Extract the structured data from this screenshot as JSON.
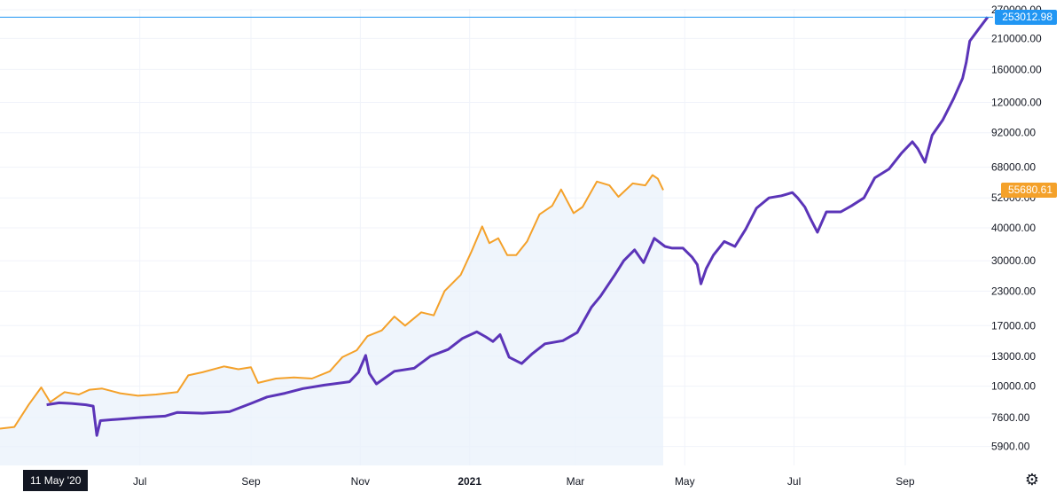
{
  "colors": {
    "series_primary": "#5b34b8",
    "series_secondary": "#f4a12a",
    "area_fill": "#eaf1fb",
    "crosshair": "#2196f3",
    "grid": "#f0f3fa",
    "text": "#131722"
  },
  "chart_data": {
    "type": "line",
    "y_scale": "log",
    "ylim": [
      5000,
      272000
    ],
    "x_range": [
      "2020-04-14",
      "2021-10-20"
    ],
    "x_ticks": [
      {
        "date": "2020-07-01",
        "label": "Jul"
      },
      {
        "date": "2020-09-01",
        "label": "Sep"
      },
      {
        "date": "2020-11-01",
        "label": "Nov"
      },
      {
        "date": "2021-01-01",
        "label": "2021"
      },
      {
        "date": "2021-03-01",
        "label": "Mar"
      },
      {
        "date": "2021-05-01",
        "label": "May"
      },
      {
        "date": "2021-07-01",
        "label": "Jul"
      },
      {
        "date": "2021-09-01",
        "label": "Sep"
      }
    ],
    "y_ticks": [
      {
        "value": 270000,
        "label": "270000.00"
      },
      {
        "value": 210000,
        "label": "210000.00"
      },
      {
        "value": 160000,
        "label": "160000.00"
      },
      {
        "value": 120000,
        "label": "120000.00"
      },
      {
        "value": 92000,
        "label": "92000.00"
      },
      {
        "value": 68000,
        "label": "68000.00"
      },
      {
        "value": 52000,
        "label": "52000.00"
      },
      {
        "value": 40000,
        "label": "40000.00"
      },
      {
        "value": 30000,
        "label": "30000.00"
      },
      {
        "value": 23000,
        "label": "23000.00"
      },
      {
        "value": 17000,
        "label": "17000.00"
      },
      {
        "value": 13000,
        "label": "13000.00"
      },
      {
        "value": 10000,
        "label": "10000.00"
      },
      {
        "value": 7600,
        "label": "7600.00"
      },
      {
        "value": 5900,
        "label": "5900.00"
      }
    ],
    "series": [
      {
        "color": "#f4a12a",
        "area": true,
        "last_value_label": "55680.61",
        "points": [
          [
            "2020-04-14",
            6900
          ],
          [
            "2020-04-22",
            7000
          ],
          [
            "2020-04-30",
            8500
          ],
          [
            "2020-05-07",
            9900
          ],
          [
            "2020-05-12",
            8700
          ],
          [
            "2020-05-20",
            9500
          ],
          [
            "2020-05-28",
            9300
          ],
          [
            "2020-06-03",
            9700
          ],
          [
            "2020-06-10",
            9800
          ],
          [
            "2020-06-20",
            9400
          ],
          [
            "2020-06-30",
            9200
          ],
          [
            "2020-07-10",
            9300
          ],
          [
            "2020-07-22",
            9500
          ],
          [
            "2020-07-28",
            11000
          ],
          [
            "2020-08-05",
            11300
          ],
          [
            "2020-08-17",
            11900
          ],
          [
            "2020-08-25",
            11600
          ],
          [
            "2020-09-01",
            11800
          ],
          [
            "2020-09-05",
            10300
          ],
          [
            "2020-09-15",
            10700
          ],
          [
            "2020-09-25",
            10800
          ],
          [
            "2020-10-05",
            10700
          ],
          [
            "2020-10-15",
            11400
          ],
          [
            "2020-10-22",
            12900
          ],
          [
            "2020-10-30",
            13700
          ],
          [
            "2020-11-05",
            15500
          ],
          [
            "2020-11-13",
            16300
          ],
          [
            "2020-11-20",
            18400
          ],
          [
            "2020-11-26",
            17000
          ],
          [
            "2020-12-05",
            19100
          ],
          [
            "2020-12-12",
            18600
          ],
          [
            "2020-12-18",
            23000
          ],
          [
            "2020-12-27",
            26500
          ],
          [
            "2021-01-02",
            32500
          ],
          [
            "2021-01-08",
            40500
          ],
          [
            "2021-01-12",
            35000
          ],
          [
            "2021-01-17",
            36500
          ],
          [
            "2021-01-22",
            31500
          ],
          [
            "2021-01-27",
            31500
          ],
          [
            "2021-02-02",
            35500
          ],
          [
            "2021-02-09",
            45000
          ],
          [
            "2021-02-16",
            48500
          ],
          [
            "2021-02-21",
            56000
          ],
          [
            "2021-02-28",
            45500
          ],
          [
            "2021-03-05",
            48000
          ],
          [
            "2021-03-13",
            60000
          ],
          [
            "2021-03-20",
            58000
          ],
          [
            "2021-03-25",
            52500
          ],
          [
            "2021-04-02",
            59000
          ],
          [
            "2021-04-09",
            58000
          ],
          [
            "2021-04-13",
            63500
          ],
          [
            "2021-04-16",
            61500
          ],
          [
            "2021-04-19",
            55680.61
          ]
        ]
      },
      {
        "color": "#5b34b8",
        "area": false,
        "last_value_label": "253012.98",
        "points": [
          [
            "2020-05-10",
            8500
          ],
          [
            "2020-05-17",
            8650
          ],
          [
            "2020-05-24",
            8600
          ],
          [
            "2020-06-01",
            8500
          ],
          [
            "2020-06-05",
            8400
          ],
          [
            "2020-06-07",
            6500
          ],
          [
            "2020-06-09",
            7400
          ],
          [
            "2020-06-20",
            7500
          ],
          [
            "2020-07-01",
            7600
          ],
          [
            "2020-07-15",
            7700
          ],
          [
            "2020-07-22",
            7950
          ],
          [
            "2020-08-05",
            7900
          ],
          [
            "2020-08-20",
            8000
          ],
          [
            "2020-09-01",
            8600
          ],
          [
            "2020-09-10",
            9100
          ],
          [
            "2020-09-20",
            9400
          ],
          [
            "2020-09-30",
            9800
          ],
          [
            "2020-10-12",
            10100
          ],
          [
            "2020-10-26",
            10400
          ],
          [
            "2020-10-31",
            11300
          ],
          [
            "2020-11-04",
            13100
          ],
          [
            "2020-11-06",
            11200
          ],
          [
            "2020-11-10",
            10200
          ],
          [
            "2020-11-20",
            11400
          ],
          [
            "2020-12-01",
            11700
          ],
          [
            "2020-12-10",
            13000
          ],
          [
            "2020-12-20",
            13800
          ],
          [
            "2020-12-28",
            15200
          ],
          [
            "2021-01-05",
            16100
          ],
          [
            "2021-01-10",
            15400
          ],
          [
            "2021-01-14",
            14800
          ],
          [
            "2021-01-18",
            15700
          ],
          [
            "2021-01-23",
            12900
          ],
          [
            "2021-01-30",
            12200
          ],
          [
            "2021-02-05",
            13300
          ],
          [
            "2021-02-12",
            14500
          ],
          [
            "2021-02-22",
            14900
          ],
          [
            "2021-03-02",
            16000
          ],
          [
            "2021-03-10",
            20000
          ],
          [
            "2021-03-15",
            22000
          ],
          [
            "2021-03-23",
            26500
          ],
          [
            "2021-03-28",
            30000
          ],
          [
            "2021-04-03",
            33000
          ],
          [
            "2021-04-08",
            29500
          ],
          [
            "2021-04-14",
            36500
          ],
          [
            "2021-04-20",
            34000
          ],
          [
            "2021-04-24",
            33500
          ],
          [
            "2021-04-30",
            33500
          ],
          [
            "2021-05-05",
            31000
          ],
          [
            "2021-05-08",
            29000
          ],
          [
            "2021-05-10",
            24500
          ],
          [
            "2021-05-13",
            28000
          ],
          [
            "2021-05-17",
            31500
          ],
          [
            "2021-05-23",
            35500
          ],
          [
            "2021-05-29",
            34000
          ],
          [
            "2021-06-04",
            39500
          ],
          [
            "2021-06-10",
            47500
          ],
          [
            "2021-06-17",
            52000
          ],
          [
            "2021-06-24",
            53000
          ],
          [
            "2021-06-30",
            54500
          ],
          [
            "2021-07-03",
            52000
          ],
          [
            "2021-07-07",
            48000
          ],
          [
            "2021-07-10",
            43500
          ],
          [
            "2021-07-14",
            38500
          ],
          [
            "2021-07-19",
            46000
          ],
          [
            "2021-07-27",
            46000
          ],
          [
            "2021-08-02",
            48500
          ],
          [
            "2021-08-09",
            52000
          ],
          [
            "2021-08-15",
            62000
          ],
          [
            "2021-08-23",
            67000
          ],
          [
            "2021-08-30",
            77000
          ],
          [
            "2021-09-05",
            85000
          ],
          [
            "2021-09-08",
            80000
          ],
          [
            "2021-09-12",
            71000
          ],
          [
            "2021-09-16",
            90000
          ],
          [
            "2021-09-22",
            103000
          ],
          [
            "2021-09-28",
            124000
          ],
          [
            "2021-10-03",
            148000
          ],
          [
            "2021-10-05",
            170000
          ],
          [
            "2021-10-07",
            205000
          ],
          [
            "2021-10-12",
            228000
          ],
          [
            "2021-10-17",
            253012.98
          ]
        ]
      }
    ]
  },
  "crosshair": {
    "price_label": "253012.98",
    "date_label": "11 May '20"
  },
  "settings_icon": "gear-icon"
}
